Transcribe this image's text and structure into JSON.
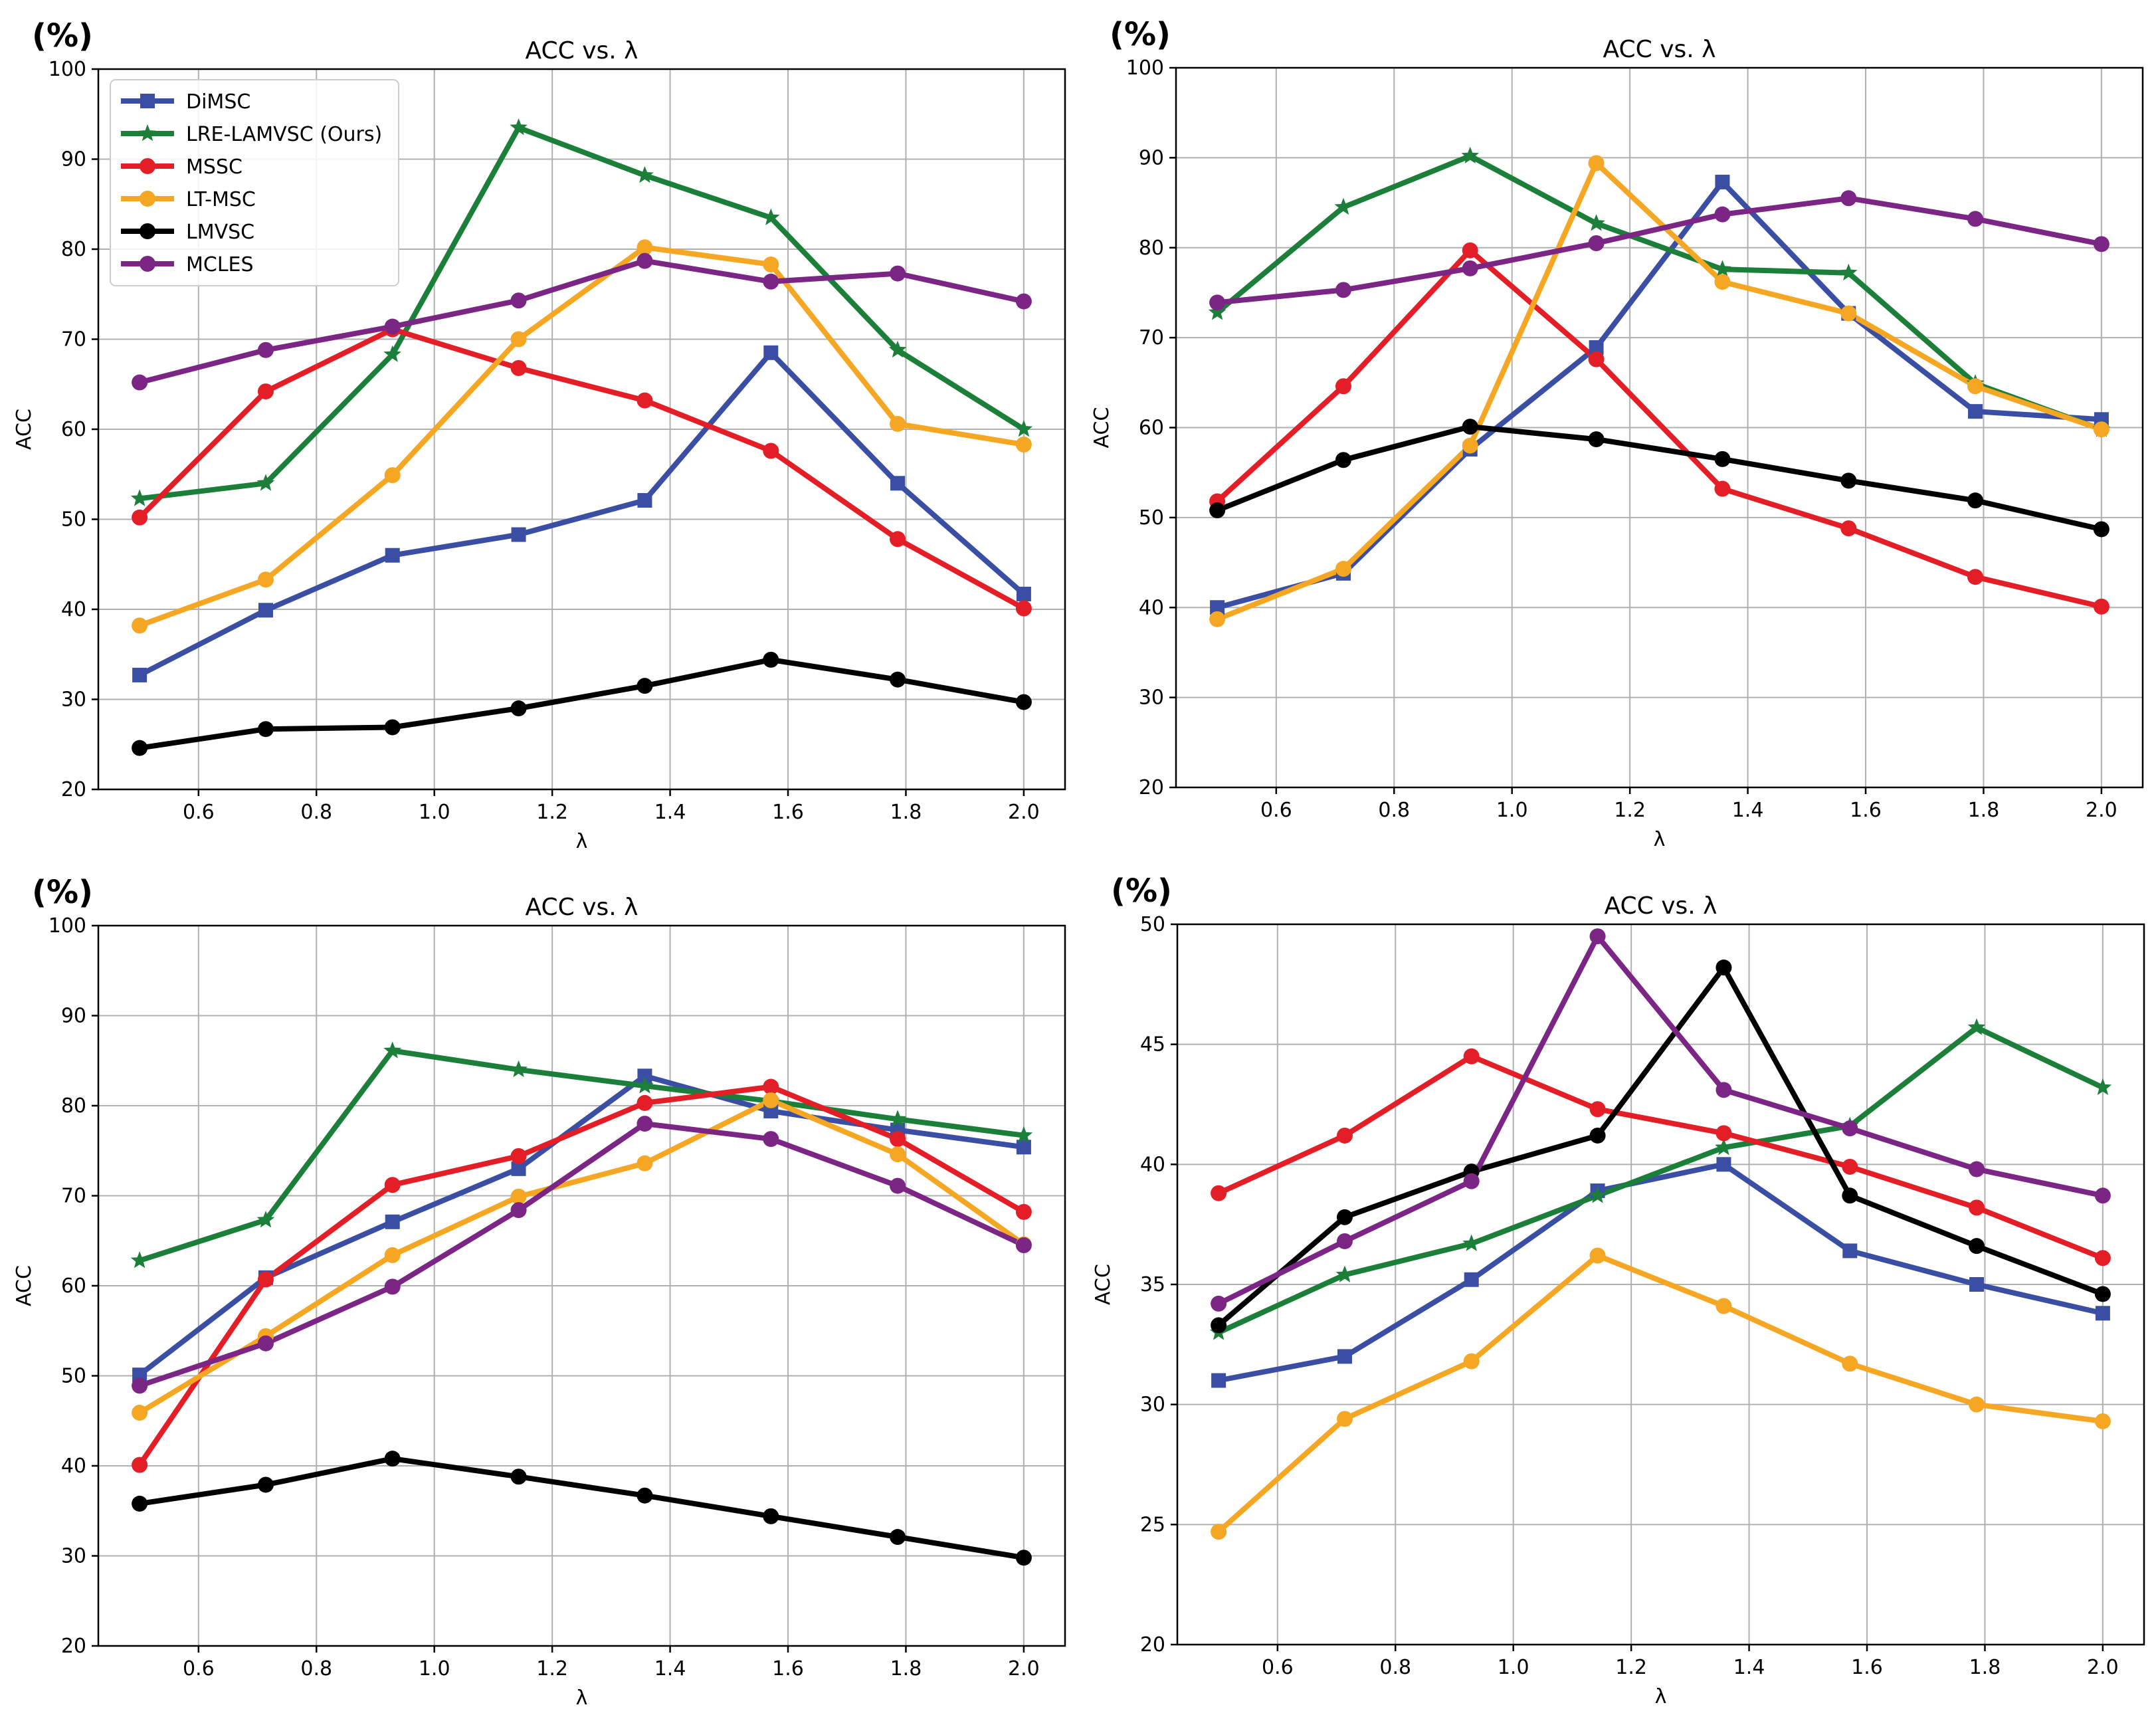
{
  "chart_data": [
    {
      "type": "line",
      "title": "ACC vs. λ",
      "corner_label": "(%)",
      "xlabel": "λ",
      "ylabel": "ACC",
      "xlim": [
        0.43,
        2.07
      ],
      "ylim": [
        20,
        100
      ],
      "xticks": [
        0.6,
        0.8,
        1.0,
        1.2,
        1.4,
        1.6,
        1.8,
        2.0
      ],
      "xtick_labels": [
        "0.6",
        "0.8",
        "1.0",
        "1.2",
        "1.4",
        "1.6",
        "1.8",
        "2.0"
      ],
      "yticks": [
        20,
        30,
        40,
        50,
        60,
        70,
        80,
        90,
        100
      ],
      "ytick_labels": [
        "20",
        "30",
        "40",
        "50",
        "60",
        "70",
        "80",
        "90",
        "100"
      ],
      "grid": true,
      "legend": "top-left",
      "x": [
        0.5,
        0.714,
        0.929,
        1.143,
        1.357,
        1.571,
        1.786,
        2.0
      ],
      "series": [
        {
          "name": "DiMSC",
          "color": "#3a4fa3",
          "marker": "square",
          "values": [
            32.7,
            39.9,
            46.0,
            48.3,
            52.1,
            68.5,
            54.0,
            41.7
          ]
        },
        {
          "name": "LRE-LAMVSC (Ours)",
          "color": "#1b7f3a",
          "marker": "star",
          "values": [
            52.3,
            54.0,
            68.3,
            93.5,
            88.2,
            83.5,
            68.8,
            60.0
          ]
        },
        {
          "name": "MSSC",
          "color": "#e31e26",
          "marker": "circle",
          "values": [
            50.2,
            64.2,
            71.1,
            66.8,
            63.2,
            57.6,
            47.8,
            40.1
          ]
        },
        {
          "name": "LT-MSC",
          "color": "#f5a623",
          "marker": "circle",
          "values": [
            38.2,
            43.3,
            54.9,
            70.0,
            80.2,
            78.3,
            60.6,
            58.3
          ]
        },
        {
          "name": "LMVSC",
          "color": "#000000",
          "marker": "circle",
          "values": [
            24.6,
            26.7,
            26.9,
            29.0,
            31.5,
            34.4,
            32.2,
            29.7
          ]
        },
        {
          "name": "MCLES",
          "color": "#7b2585",
          "marker": "circle",
          "values": [
            65.2,
            68.8,
            71.4,
            74.3,
            78.7,
            76.4,
            77.3,
            74.2
          ]
        }
      ]
    },
    {
      "type": "line",
      "title": "ACC vs. λ",
      "corner_label": "(%)",
      "xlabel": "λ",
      "ylabel": "ACC",
      "xlim": [
        0.43,
        2.07
      ],
      "ylim": [
        20,
        100
      ],
      "xticks": [
        0.6,
        0.8,
        1.0,
        1.2,
        1.4,
        1.6,
        1.8,
        2.0
      ],
      "xtick_labels": [
        "0.6",
        "0.8",
        "1.0",
        "1.2",
        "1.4",
        "1.6",
        "1.8",
        "2.0"
      ],
      "yticks": [
        20,
        30,
        40,
        50,
        60,
        70,
        80,
        90,
        100
      ],
      "ytick_labels": [
        "20",
        "30",
        "40",
        "50",
        "60",
        "70",
        "80",
        "90",
        "100"
      ],
      "grid": true,
      "x": [
        0.5,
        0.714,
        0.929,
        1.143,
        1.357,
        1.571,
        1.786,
        2.0
      ],
      "series": [
        {
          "name": "DiMSC",
          "color": "#3a4fa3",
          "marker": "square",
          "values": [
            40.0,
            43.8,
            57.6,
            68.9,
            87.3,
            72.7,
            61.8,
            60.9
          ]
        },
        {
          "name": "LRE-LAMVSC (Ours)",
          "color": "#1b7f3a",
          "marker": "star",
          "values": [
            72.8,
            84.5,
            90.2,
            82.7,
            77.6,
            77.2,
            64.9,
            59.8
          ]
        },
        {
          "name": "MSSC",
          "color": "#e31e26",
          "marker": "circle",
          "values": [
            51.8,
            64.6,
            79.7,
            67.6,
            53.2,
            48.8,
            43.4,
            40.1
          ]
        },
        {
          "name": "LT-MSC",
          "color": "#f5a623",
          "marker": "circle",
          "values": [
            38.7,
            44.3,
            58.0,
            89.4,
            76.2,
            72.7,
            64.6,
            59.8
          ]
        },
        {
          "name": "LMVSC",
          "color": "#000000",
          "marker": "circle",
          "values": [
            50.8,
            56.4,
            60.1,
            58.7,
            56.5,
            54.1,
            51.9,
            48.7
          ]
        },
        {
          "name": "MCLES",
          "color": "#7b2585",
          "marker": "circle",
          "values": [
            73.9,
            75.3,
            77.7,
            80.5,
            83.7,
            85.5,
            83.2,
            80.4
          ]
        }
      ]
    },
    {
      "type": "line",
      "title": "ACC vs. λ",
      "corner_label": "(%)",
      "xlabel": "λ",
      "ylabel": "ACC",
      "xlim": [
        0.43,
        2.07
      ],
      "ylim": [
        20,
        100
      ],
      "xticks": [
        0.6,
        0.8,
        1.0,
        1.2,
        1.4,
        1.6,
        1.8,
        2.0
      ],
      "xtick_labels": [
        "0.6",
        "0.8",
        "1.0",
        "1.2",
        "1.4",
        "1.6",
        "1.8",
        "2.0"
      ],
      "yticks": [
        20,
        30,
        40,
        50,
        60,
        70,
        80,
        90,
        100
      ],
      "ytick_labels": [
        "20",
        "30",
        "40",
        "50",
        "60",
        "70",
        "80",
        "90",
        "100"
      ],
      "grid": true,
      "x": [
        0.5,
        0.714,
        0.929,
        1.143,
        1.357,
        1.571,
        1.786,
        2.0
      ],
      "series": [
        {
          "name": "DiMSC",
          "color": "#3a4fa3",
          "marker": "square",
          "values": [
            50.1,
            60.9,
            67.1,
            73.0,
            83.3,
            79.4,
            77.3,
            75.4
          ]
        },
        {
          "name": "LRE-LAMVSC (Ours)",
          "color": "#1b7f3a",
          "marker": "star",
          "values": [
            62.8,
            67.3,
            86.1,
            84.0,
            82.2,
            80.5,
            78.5,
            76.7
          ]
        },
        {
          "name": "MSSC",
          "color": "#e31e26",
          "marker": "circle",
          "values": [
            40.1,
            60.7,
            71.2,
            74.4,
            80.3,
            82.1,
            76.3,
            68.2
          ]
        },
        {
          "name": "LT-MSC",
          "color": "#f5a623",
          "marker": "circle",
          "values": [
            45.9,
            54.4,
            63.4,
            69.9,
            73.6,
            80.6,
            74.6,
            64.6
          ]
        },
        {
          "name": "LMVSC",
          "color": "#000000",
          "marker": "circle",
          "values": [
            35.8,
            37.9,
            40.8,
            38.8,
            36.7,
            34.4,
            32.1,
            29.8
          ]
        },
        {
          "name": "MCLES",
          "color": "#7b2585",
          "marker": "circle",
          "values": [
            48.9,
            53.6,
            59.9,
            68.4,
            78.0,
            76.3,
            71.1,
            64.5
          ]
        }
      ]
    },
    {
      "type": "line",
      "title": "ACC vs. λ",
      "corner_label": "(%)",
      "xlabel": "λ",
      "ylabel": "ACC",
      "xlim": [
        0.43,
        2.07
      ],
      "ylim": [
        20,
        50
      ],
      "xticks": [
        0.6,
        0.8,
        1.0,
        1.2,
        1.4,
        1.6,
        1.8,
        2.0
      ],
      "xtick_labels": [
        "0.6",
        "0.8",
        "1.0",
        "1.2",
        "1.4",
        "1.6",
        "1.8",
        "2.0"
      ],
      "yticks": [
        20,
        25,
        30,
        35,
        40,
        45,
        50
      ],
      "ytick_labels": [
        "20",
        "25",
        "30",
        "35",
        "40",
        "45",
        "50"
      ],
      "grid": true,
      "x": [
        0.5,
        0.714,
        0.929,
        1.143,
        1.357,
        1.571,
        1.786,
        2.0
      ],
      "series": [
        {
          "name": "DiMSC",
          "color": "#3a4fa3",
          "marker": "square",
          "values": [
            31.0,
            32.0,
            35.2,
            38.9,
            40.0,
            36.4,
            35.0,
            33.8
          ]
        },
        {
          "name": "LRE-LAMVSC (Ours)",
          "color": "#1b7f3a",
          "marker": "star",
          "values": [
            33.0,
            35.4,
            36.7,
            38.7,
            40.7,
            41.6,
            45.7,
            43.2
          ]
        },
        {
          "name": "MSSC",
          "color": "#e31e26",
          "marker": "circle",
          "values": [
            38.8,
            41.2,
            44.5,
            42.3,
            41.3,
            39.9,
            38.2,
            36.1
          ]
        },
        {
          "name": "LT-MSC",
          "color": "#f5a623",
          "marker": "circle",
          "values": [
            24.7,
            29.4,
            31.8,
            36.2,
            34.1,
            31.7,
            30.0,
            29.3
          ]
        },
        {
          "name": "LMVSC",
          "color": "#000000",
          "marker": "circle",
          "values": [
            33.3,
            37.8,
            39.7,
            41.2,
            48.2,
            38.7,
            36.6,
            34.6
          ]
        },
        {
          "name": "MCLES",
          "color": "#7b2585",
          "marker": "circle",
          "values": [
            34.2,
            36.8,
            39.3,
            49.5,
            43.1,
            41.5,
            39.8,
            38.7
          ]
        }
      ]
    }
  ]
}
